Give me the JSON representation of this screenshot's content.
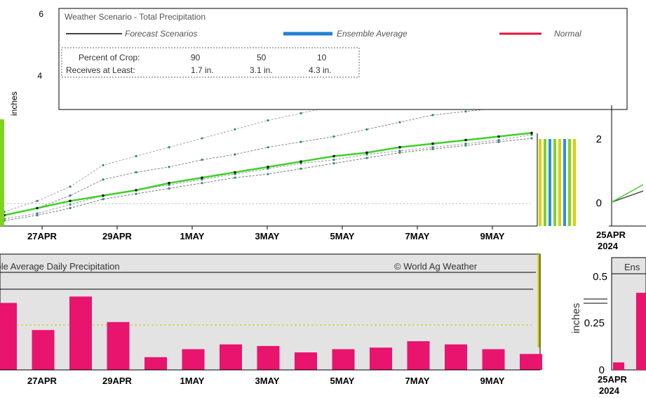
{
  "colors": {
    "panel_bg": "#e3e3e3",
    "bar": "#e8146e",
    "normal_line": "#e8143c",
    "ens_line": "#1f7fd4",
    "trend_line": "#40d028",
    "stripe_green": "#7ed321",
    "stripe_yellow": "#d4d400",
    "stripe_blue": "#2d8fd8"
  },
  "chart_data": [
    {
      "type": "line",
      "title": "Weather Scenario - Total Precipitation",
      "legend": {
        "position": "top",
        "items": [
          "Forecast Scenarios",
          "Ensemble Average",
          "Normal"
        ]
      },
      "probability_table": {
        "row1_label": "Percent of Crop:",
        "row1_values": [
          "90",
          "50",
          "10"
        ],
        "row2_label": "Receives at Least:",
        "row2_values": [
          "1.7 in.",
          "3.1 in.",
          "4.3 in."
        ]
      },
      "ylabel": "inches",
      "ylim": [
        0,
        6
      ],
      "y_ticks": [
        "6",
        "4"
      ],
      "x_ticks": [
        "27APR",
        "29APR",
        "1MAY",
        "3MAY",
        "5MAY",
        "7MAY",
        "9MAY"
      ],
      "x": [
        1,
        2,
        3,
        4,
        5,
        6,
        7,
        8,
        9,
        10,
        11,
        12,
        13,
        14,
        15,
        16,
        17
      ],
      "series": [
        {
          "values": [
            0.3,
            0.5,
            0.85,
            1.3,
            1.5,
            1.65,
            1.85,
            2.0,
            2.2,
            2.35,
            2.5,
            2.7,
            2.9,
            3.1,
            3.2,
            3.3,
            3.45
          ]
        },
        {
          "values": [
            0.2,
            0.35,
            0.6,
            0.85,
            1.0,
            1.15,
            1.3,
            1.45,
            1.6,
            1.75,
            1.85,
            2.0,
            2.1,
            2.2,
            2.3,
            2.4,
            2.55
          ]
        },
        {
          "values": [
            0.4,
            0.7,
            1.1,
            1.7,
            1.95,
            2.2,
            2.45,
            2.7,
            2.95,
            3.15,
            3.35,
            3.6,
            3.85,
            4.05,
            4.25,
            4.45,
            4.6
          ]
        },
        {
          "values": [
            0.15,
            0.3,
            0.5,
            0.75,
            0.9,
            1.05,
            1.2,
            1.35,
            1.45,
            1.6,
            1.75,
            1.9,
            2.05,
            2.15,
            2.25,
            2.35,
            2.45
          ]
        }
      ],
      "trend": {
        "values": [
          0.3,
          0.5,
          0.7,
          0.85,
          1.0,
          1.2,
          1.35,
          1.5,
          1.65,
          1.8,
          1.95,
          2.05,
          2.2,
          2.3,
          2.4,
          2.5,
          2.6
        ]
      }
    },
    {
      "type": "line",
      "title": "",
      "ylabel": "",
      "ylim": [
        0,
        4
      ],
      "y_ticks": [
        "2",
        "0"
      ],
      "x_ticks": [
        "25APR"
      ],
      "x_year": "2024",
      "x": [
        0,
        1
      ],
      "series": [
        {
          "values": [
            0,
            0.35
          ]
        },
        {
          "values": [
            0,
            0.55
          ]
        }
      ]
    },
    {
      "type": "bar",
      "title": "Ensemble Average Daily Precipitation",
      "watermark": "© World Ag Weather",
      "ylabel": "inches",
      "ylim": [
        0,
        0.55
      ],
      "x_ticks": [
        "27APR",
        "29APR",
        "1MAY",
        "3MAY",
        "5MAY",
        "7MAY",
        "9MAY"
      ],
      "x": [
        1,
        2,
        3,
        4,
        5,
        6,
        7,
        8,
        9,
        10,
        11,
        12,
        13,
        14,
        15
      ],
      "values": [
        0.42,
        0.25,
        0.46,
        0.3,
        0.08,
        0.13,
        0.16,
        0.15,
        0.11,
        0.13,
        0.14,
        0.18,
        0.16,
        0.13,
        0.1
      ]
    },
    {
      "type": "bar",
      "title": "Ens",
      "ylabel": "inches",
      "ylim": [
        0,
        0.6
      ],
      "y_ticks": [
        "0.5",
        "0.25",
        "0"
      ],
      "x_ticks": [
        "25APR"
      ],
      "x_year": "2024",
      "x": [
        0,
        1
      ],
      "values": [
        0.04,
        0.41
      ]
    }
  ]
}
